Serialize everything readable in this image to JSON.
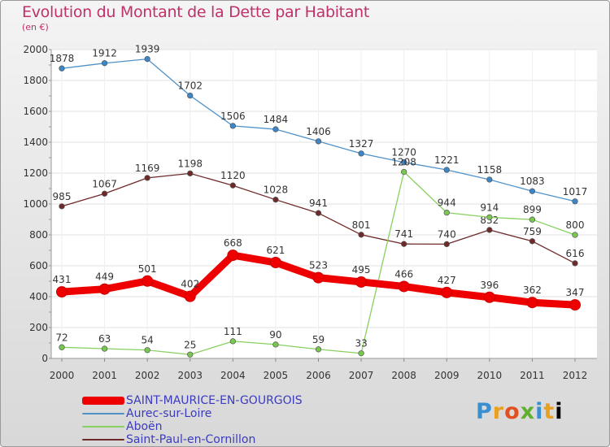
{
  "header": {
    "title": "Evolution du Montant de la Dette par Habitant",
    "unit": "(en €)"
  },
  "brand": {
    "letters": [
      "P",
      "r",
      "o",
      "x",
      "i",
      "t",
      "i"
    ]
  },
  "chart_data": {
    "type": "line",
    "title": "Evolution du Montant de la Dette par Habitant",
    "subtitle": "(en €)",
    "xlabel": "",
    "ylabel": "",
    "ylim": [
      0,
      2000
    ],
    "yticks": [
      "0",
      "200",
      "400",
      "600",
      "800",
      "1000",
      "1200",
      "1400",
      "1600",
      "1800",
      "2000"
    ],
    "categories": [
      "2000",
      "2001",
      "2002",
      "2003",
      "2004",
      "2005",
      "2006",
      "2007",
      "2008",
      "2009",
      "2010",
      "2011",
      "2012"
    ],
    "grid": true,
    "legend_position": "bottom-left",
    "series": [
      {
        "name": "Aurec-sur-Loire",
        "color": "#4f92c8",
        "dot": "#3a86c8",
        "values": [
          1878,
          1912,
          1939,
          1702,
          1506,
          1484,
          1406,
          1327,
          1270,
          1221,
          1158,
          1083,
          1017
        ],
        "labels": [
          "1878",
          "1912",
          "1939",
          "1702",
          "1506",
          "1484",
          "1406",
          "1327",
          "1270",
          "1221",
          "1158",
          "1083",
          "1017"
        ]
      },
      {
        "name": "Saint-Paul-en-Cornillon",
        "color": "#6e2a2a",
        "dot": "#6e2a2a",
        "values": [
          985,
          1067,
          1169,
          1198,
          1120,
          1028,
          941,
          801,
          741,
          740,
          832,
          759,
          616
        ],
        "labels": [
          "985",
          "1067",
          "1169",
          "1198",
          "1120",
          "1028",
          "941",
          "801",
          "741",
          "740",
          "832",
          "759",
          "616"
        ]
      },
      {
        "name": "Aboën",
        "color": "#88d060",
        "dot": "#78c850",
        "values": [
          72,
          63,
          54,
          25,
          111,
          90,
          59,
          33,
          1208,
          944,
          914,
          899,
          800
        ],
        "labels": [
          "72",
          "63",
          "54",
          "25",
          "111",
          "90",
          "59",
          "33",
          "1208",
          "944",
          "914",
          "899",
          "800"
        ]
      },
      {
        "name": "SAINT-MAURICE-EN-GOURGOIS",
        "color": "#ee0000",
        "dot": "#ee0000",
        "values": [
          431,
          449,
          501,
          402,
          668,
          621,
          523,
          495,
          466,
          427,
          396,
          362,
          347
        ],
        "labels": [
          "431",
          "449",
          "501",
          "402",
          "668",
          "621",
          "523",
          "495",
          "466",
          "427",
          "396",
          "362",
          "347"
        ]
      }
    ]
  },
  "legend": [
    {
      "label": "SAINT-MAURICE-EN-GOURGOIS",
      "color": "#ee0000",
      "width": 10
    },
    {
      "label": "Aurec-sur-Loire",
      "color": "#4f92c8",
      "width": 2
    },
    {
      "label": "Aboën",
      "color": "#88d060",
      "width": 2
    },
    {
      "label": "Saint-Paul-en-Cornillon",
      "color": "#6e2a2a",
      "width": 2
    }
  ]
}
